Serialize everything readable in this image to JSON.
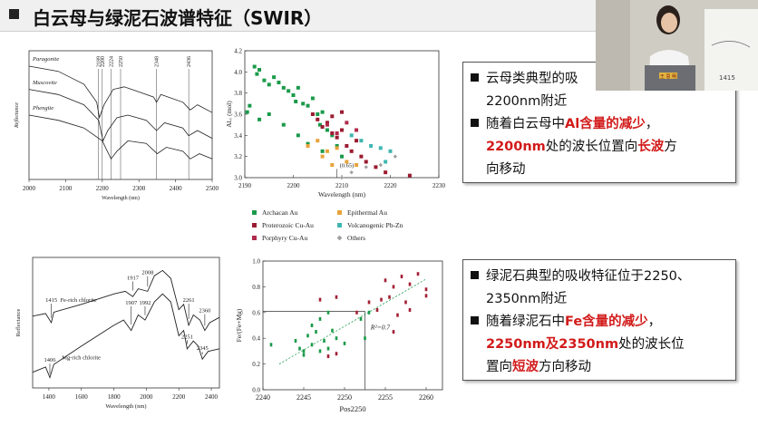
{
  "slide": {
    "title": "白云母与绿泥石波谱特征（SWIR）",
    "box1": {
      "line1": {
        "t": "云母类典型的吸"
      },
      "line2": {
        "t": "2200nm附近"
      },
      "line3": {
        "a": "随着白云母中",
        "b": "Al含量的减少",
        "c": "，"
      },
      "line4": {
        "a": "2200nm",
        "b": "处的波长位置向",
        "c": "长波",
        "d": "方"
      },
      "line5": {
        "t": "向移动"
      }
    },
    "box2": {
      "line1": {
        "t": "绿泥石典型的吸收特征位于2250、"
      },
      "line2": {
        "t": "2350nm附近"
      },
      "line3": {
        "a": "随着绿泥石中",
        "b": "Fe含量的减少",
        "c": "，"
      },
      "line4": {
        "a": "2250nm及2350nm",
        "b": "处的波长位"
      },
      "line5": {
        "a": "置向",
        "b": "短波",
        "c": "方向移动"
      }
    },
    "video": {
      "board_text": "1415",
      "badge_text": "王 思 明"
    }
  },
  "mica_spectra": {
    "type": "line",
    "title": "",
    "xlabel": "Wavelength (nm)",
    "ylabel": "Reflectance",
    "x_ticks": [
      "2000",
      "2100",
      "2200",
      "2300",
      "2400",
      "2500"
    ],
    "xlim": [
      2000,
      2500
    ],
    "markers": [
      "2189",
      "2200",
      "2224",
      "2250",
      "2348",
      "2436"
    ],
    "series": [
      {
        "name": "Paragonite",
        "curve": [
          [
            2000,
            0.88
          ],
          [
            2080,
            0.84
          ],
          [
            2150,
            0.74
          ],
          [
            2185,
            0.6
          ],
          [
            2192,
            0.48
          ],
          [
            2205,
            0.58
          ],
          [
            2230,
            0.7
          ],
          [
            2260,
            0.72
          ],
          [
            2300,
            0.68
          ],
          [
            2340,
            0.64
          ],
          [
            2348,
            0.6
          ],
          [
            2360,
            0.66
          ],
          [
            2420,
            0.6
          ],
          [
            2440,
            0.54
          ],
          [
            2460,
            0.58
          ],
          [
            2500,
            0.52
          ]
        ]
      },
      {
        "name": "Muscovite",
        "curve": [
          [
            2000,
            0.7
          ],
          [
            2080,
            0.66
          ],
          [
            2150,
            0.58
          ],
          [
            2190,
            0.46
          ],
          [
            2202,
            0.3
          ],
          [
            2215,
            0.38
          ],
          [
            2240,
            0.48
          ],
          [
            2270,
            0.5
          ],
          [
            2320,
            0.46
          ],
          [
            2348,
            0.38
          ],
          [
            2370,
            0.44
          ],
          [
            2420,
            0.4
          ],
          [
            2436,
            0.34
          ],
          [
            2460,
            0.38
          ],
          [
            2500,
            0.32
          ]
        ]
      },
      {
        "name": "Phengite",
        "curve": [
          [
            2000,
            0.5
          ],
          [
            2080,
            0.46
          ],
          [
            2150,
            0.4
          ],
          [
            2200,
            0.3
          ],
          [
            2224,
            0.16
          ],
          [
            2240,
            0.22
          ],
          [
            2270,
            0.3
          ],
          [
            2320,
            0.28
          ],
          [
            2350,
            0.2
          ],
          [
            2375,
            0.25
          ],
          [
            2420,
            0.22
          ],
          [
            2440,
            0.16
          ],
          [
            2465,
            0.2
          ],
          [
            2500,
            0.16
          ]
        ]
      }
    ]
  },
  "scatter_al": {
    "type": "scatter",
    "title": "",
    "xlabel": "Wavelength (nm)",
    "ylabel": "Alᵥᵢ (mol)",
    "xlim": [
      2190,
      2230
    ],
    "ylim": [
      3.0,
      4.2
    ],
    "x_ticks": [
      "2190",
      "2200",
      "2210",
      "2220",
      "2230"
    ],
    "y_ticks": [
      "3.0",
      "3.2",
      "3.4",
      "3.6",
      "3.8",
      "4.0",
      "4.2"
    ],
    "annotation": "(0.65)",
    "annotation_xy": [
      2209,
      3.1
    ],
    "legend": [
      {
        "label": "Archacan Au",
        "color": "#1a9a4a"
      },
      {
        "label": "Epithermal Au",
        "color": "#e8a33a"
      },
      {
        "label": "Proterozoic Cu-Au",
        "color": "#9b1b30"
      },
      {
        "label": "Volcanogenic Pb-Zn",
        "color": "#3fb6b0"
      },
      {
        "label": "Porphyry Cu-Au",
        "color": "#b02a4a"
      },
      {
        "label": "Others",
        "color": "#a0a0a0"
      }
    ],
    "points": [
      [
        2192,
        4.05,
        0
      ],
      [
        2192.5,
        3.98,
        0
      ],
      [
        2193,
        4.02,
        0
      ],
      [
        2194,
        3.92,
        0
      ],
      [
        2195,
        3.88,
        0
      ],
      [
        2196,
        3.95,
        0
      ],
      [
        2197,
        3.9,
        0
      ],
      [
        2198,
        3.85,
        0
      ],
      [
        2199,
        3.82,
        0
      ],
      [
        2200,
        3.78,
        0
      ],
      [
        2200.5,
        3.72,
        0
      ],
      [
        2201,
        3.85,
        0
      ],
      [
        2202,
        3.7,
        0
      ],
      [
        2203,
        3.68,
        0
      ],
      [
        2204,
        3.75,
        0
      ],
      [
        2205,
        3.6,
        0
      ],
      [
        2205.5,
        3.5,
        0
      ],
      [
        2206,
        3.62,
        0
      ],
      [
        2207,
        3.45,
        0
      ],
      [
        2208,
        3.4,
        0
      ],
      [
        2209,
        3.3,
        0
      ],
      [
        2210,
        3.2,
        0
      ],
      [
        2190.5,
        3.62,
        0
      ],
      [
        2191,
        3.68,
        0
      ],
      [
        2193,
        3.55,
        0
      ],
      [
        2195,
        3.6,
        0
      ],
      [
        2198,
        3.5,
        0
      ],
      [
        2201,
        3.4,
        0
      ],
      [
        2203,
        3.32,
        0
      ],
      [
        2206,
        3.25,
        0
      ],
      [
        2204,
        3.6,
        2
      ],
      [
        2205,
        3.55,
        2
      ],
      [
        2206,
        3.48,
        2
      ],
      [
        2207,
        3.52,
        2
      ],
      [
        2208,
        3.42,
        2
      ],
      [
        2209,
        3.38,
        2
      ],
      [
        2210,
        3.45,
        2
      ],
      [
        2211,
        3.3,
        2
      ],
      [
        2212,
        3.25,
        2
      ],
      [
        2213,
        3.35,
        2
      ],
      [
        2214,
        3.2,
        2
      ],
      [
        2215,
        3.15,
        2
      ],
      [
        2217,
        3.1,
        2
      ],
      [
        2219,
        3.05,
        2
      ],
      [
        2224,
        3.02,
        2
      ],
      [
        2208,
        3.58,
        2
      ],
      [
        2210,
        3.62,
        2
      ],
      [
        2203,
        3.3,
        1
      ],
      [
        2205,
        3.35,
        1
      ],
      [
        2206,
        3.2,
        1
      ],
      [
        2207,
        3.25,
        1
      ],
      [
        2209,
        3.28,
        1
      ],
      [
        2211,
        3.15,
        1
      ],
      [
        2213,
        3.12,
        1
      ],
      [
        2208,
        3.12,
        1
      ],
      [
        2212,
        3.4,
        3
      ],
      [
        2214,
        3.35,
        3
      ],
      [
        2216,
        3.3,
        3
      ],
      [
        2218,
        3.28,
        3
      ],
      [
        2220,
        3.25,
        3
      ],
      [
        2219,
        3.15,
        3
      ],
      [
        2207,
        3.5,
        4
      ],
      [
        2209,
        3.42,
        4
      ],
      [
        2211,
        3.52,
        4
      ],
      [
        2213,
        3.45,
        4
      ],
      [
        2210,
        3.0,
        5
      ],
      [
        2212,
        3.05,
        5
      ],
      [
        2215,
        3.1,
        5
      ],
      [
        2218,
        3.12,
        5
      ],
      [
        2221,
        3.2,
        5
      ]
    ]
  },
  "chlorite_spectra": {
    "type": "line",
    "title": "",
    "xlabel": "Wavelength (nm)",
    "ylabel": "Reflectance",
    "x_ticks": [
      "1400",
      "1600",
      "1800",
      "2000",
      "2200",
      "2400"
    ],
    "xlim": [
      1300,
      2450
    ],
    "annotations": [
      "1917",
      "2008",
      "1907",
      "1992",
      "2261",
      "2360",
      "1415",
      "1406",
      "2251",
      "2345"
    ],
    "series": [
      {
        "name": "Fe-rich chlorite",
        "curve": [
          [
            1300,
            0.55
          ],
          [
            1380,
            0.57
          ],
          [
            1415,
            0.5
          ],
          [
            1430,
            0.58
          ],
          [
            1600,
            0.64
          ],
          [
            1800,
            0.72
          ],
          [
            1870,
            0.74
          ],
          [
            1917,
            0.7
          ],
          [
            1950,
            0.76
          ],
          [
            2008,
            0.74
          ],
          [
            2050,
            0.86
          ],
          [
            2100,
            0.9
          ],
          [
            2150,
            0.84
          ],
          [
            2200,
            0.6
          ],
          [
            2230,
            0.64
          ],
          [
            2261,
            0.48
          ],
          [
            2290,
            0.56
          ],
          [
            2330,
            0.52
          ],
          [
            2360,
            0.44
          ],
          [
            2390,
            0.5
          ],
          [
            2450,
            0.54
          ]
        ]
      },
      {
        "name": "Mg-rich chlorite",
        "curve": [
          [
            1300,
            0.12
          ],
          [
            1380,
            0.16
          ],
          [
            1406,
            0.08
          ],
          [
            1430,
            0.18
          ],
          [
            1600,
            0.32
          ],
          [
            1800,
            0.48
          ],
          [
            1860,
            0.52
          ],
          [
            1907,
            0.44
          ],
          [
            1950,
            0.56
          ],
          [
            1992,
            0.52
          ],
          [
            2050,
            0.66
          ],
          [
            2100,
            0.72
          ],
          [
            2150,
            0.66
          ],
          [
            2200,
            0.4
          ],
          [
            2230,
            0.44
          ],
          [
            2251,
            0.3
          ],
          [
            2290,
            0.36
          ],
          [
            2320,
            0.32
          ],
          [
            2345,
            0.22
          ],
          [
            2380,
            0.28
          ],
          [
            2450,
            0.3
          ]
        ]
      }
    ]
  },
  "scatter_fe": {
    "type": "scatter",
    "title": "",
    "xlabel": "Pos2250",
    "ylabel": "Fe/(Fe+Mg)",
    "xlim": [
      2240,
      2262
    ],
    "ylim": [
      0,
      1.0
    ],
    "x_ticks": [
      "2240",
      "2245",
      "2250",
      "2255",
      "2260"
    ],
    "y_ticks": [
      "0.0",
      "0.2",
      "0.4",
      "0.6",
      "0.8",
      "1.0"
    ],
    "r2_label": "R²=0.7",
    "ref_line_y": 0.61,
    "ref_line_x": 2252.5,
    "trend": [
      [
        2242,
        0.2
      ],
      [
        2260,
        0.86
      ]
    ],
    "green_points": [
      [
        2241,
        0.35
      ],
      [
        2244,
        0.38
      ],
      [
        2245,
        0.3
      ],
      [
        2245.5,
        0.42
      ],
      [
        2246,
        0.35
      ],
      [
        2246.5,
        0.45
      ],
      [
        2247,
        0.3
      ],
      [
        2247,
        0.55
      ],
      [
        2247.5,
        0.38
      ],
      [
        2248,
        0.6
      ],
      [
        2248,
        0.32
      ],
      [
        2248.5,
        0.46
      ],
      [
        2249,
        0.4
      ],
      [
        2250,
        0.36
      ],
      [
        2252,
        0.55
      ],
      [
        2252.5,
        0.4
      ],
      [
        2253,
        0.6
      ],
      [
        2246,
        0.5
      ],
      [
        2245,
        0.27
      ],
      [
        2244.5,
        0.32
      ]
    ],
    "red_points": [
      [
        2247,
        0.7
      ],
      [
        2249,
        0.72
      ],
      [
        2249,
        0.28
      ],
      [
        2251.5,
        0.6
      ],
      [
        2253,
        0.68
      ],
      [
        2254,
        0.62
      ],
      [
        2255,
        0.85
      ],
      [
        2255.5,
        0.72
      ],
      [
        2256,
        0.8
      ],
      [
        2256.5,
        0.58
      ],
      [
        2257,
        0.88
      ],
      [
        2257.5,
        0.68
      ],
      [
        2258,
        0.62
      ],
      [
        2259,
        0.9
      ],
      [
        2260,
        0.78
      ],
      [
        2260,
        0.73
      ],
      [
        2258,
        0.82
      ],
      [
        2256,
        0.45
      ],
      [
        2254.5,
        0.7
      ],
      [
        2248,
        0.26
      ]
    ]
  }
}
